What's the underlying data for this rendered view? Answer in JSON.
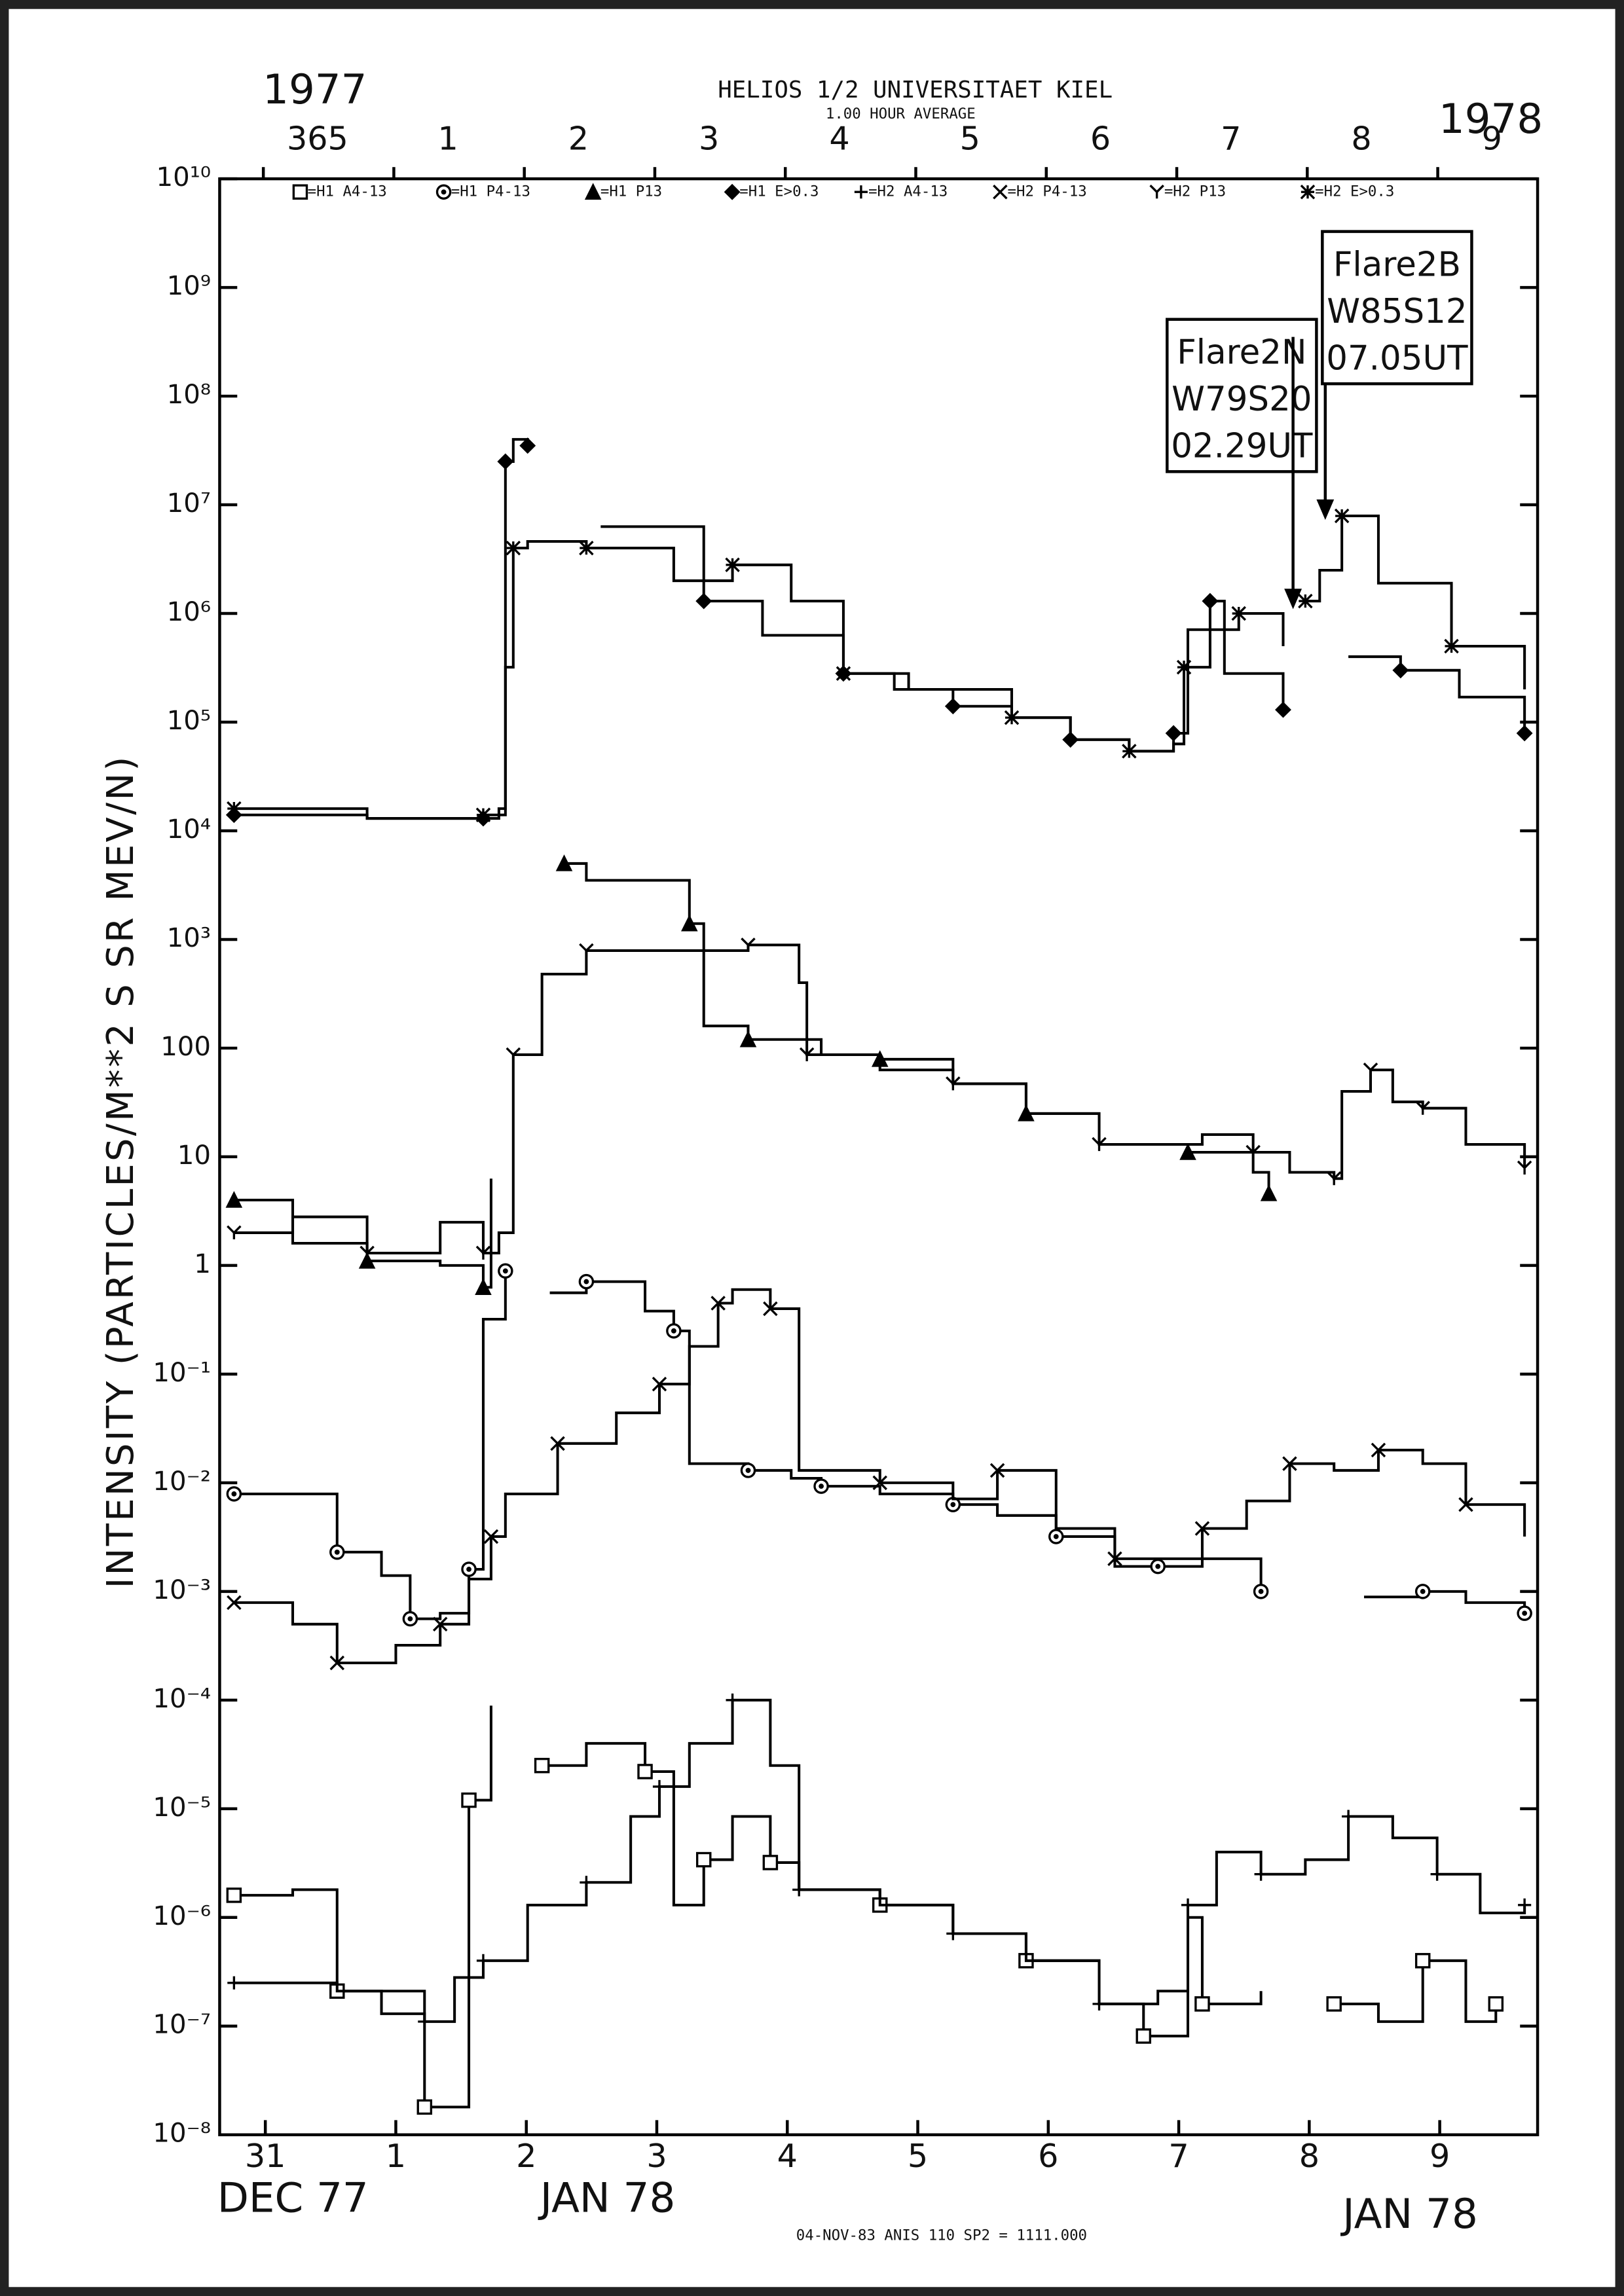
{
  "chart_data": {
    "type": "line",
    "title": "HELIOS 1/2  UNIVERSITAET KIEL",
    "subtitle": "1.00 HOUR AVERAGE",
    "year_left": "1977",
    "year_right": "1978",
    "y_label": "INTENSITY (PARTICLES/M**2 S SR MEV/N)",
    "x_labels": [
      "DEC 77",
      "JAN 78",
      "JAN 78"
    ],
    "footer": "04-NOV-83 ANIS 110 SP2 = 1111.000",
    "annotations": [
      {
        "lines": [
          "Flare2N",
          "W79S20",
          "02.29UT"
        ]
      },
      {
        "lines": [
          "Flare2B",
          "W85S12",
          "07.05UT"
        ]
      }
    ],
    "log_y": true,
    "step": true,
    "ylim": [
      1e-08,
      10000000000.0
    ],
    "yticks": [
      {
        "value": 10000000000.0,
        "label": "10¹⁰"
      },
      {
        "value": 1000000000.0,
        "label": "10⁹"
      },
      {
        "value": 100000000.0,
        "label": "10⁸"
      },
      {
        "value": 10000000.0,
        "label": "10⁷"
      },
      {
        "value": 1000000.0,
        "label": "10⁶"
      },
      {
        "value": 100000.0,
        "label": "10⁵"
      },
      {
        "value": 10000.0,
        "label": "10⁴"
      },
      {
        "value": 1000.0,
        "label": "10³"
      },
      100,
      10,
      1,
      {
        "value": 0.1,
        "label": "10⁻¹"
      },
      {
        "value": 0.01,
        "label": "10⁻²"
      },
      {
        "value": 0.001,
        "label": "10⁻³"
      },
      {
        "value": 0.0001,
        "label": "10⁻⁴"
      },
      {
        "value": 1e-05,
        "label": "10⁻⁵"
      },
      {
        "value": 1e-06,
        "label": "10⁻⁶"
      },
      {
        "value": 1e-07,
        "label": "10⁻⁷"
      },
      {
        "value": 1e-08,
        "label": "10⁻⁸"
      }
    ],
    "xlim": [
      -0.35,
      9.75
    ],
    "xticks": [
      {
        "value": 0,
        "label": "31"
      },
      1,
      2,
      3,
      4,
      5,
      6,
      7,
      8,
      9
    ],
    "x2ticks": [
      {
        "value": 0.4,
        "label": "365"
      },
      {
        "value": 1.4,
        "label": "1"
      },
      {
        "value": 2.4,
        "label": "2"
      },
      {
        "value": 3.4,
        "label": "3"
      },
      {
        "value": 4.4,
        "label": "4"
      },
      {
        "value": 5.4,
        "label": "5"
      },
      {
        "value": 6.4,
        "label": "6"
      },
      {
        "value": 7.4,
        "label": "7"
      },
      {
        "value": 8.4,
        "label": "8"
      },
      {
        "value": 9.4,
        "label": "9"
      }
    ],
    "series": [
      {
        "name": "=H1 A4-13",
        "marker": "square",
        "color": "#000",
        "x": [
          -0.24,
          0.21,
          0.55,
          0.89,
          1.22,
          1.34,
          1.56,
          1.73,
          1.9,
          2.12,
          2.46,
          2.91,
          3.13,
          3.36,
          3.58,
          3.87,
          4.09,
          4.71,
          5.27,
          5.83,
          6.39,
          6.73,
          7.07,
          7.18,
          7.63,
          7.91,
          8.19,
          8.53,
          8.87,
          9.2,
          9.43
        ],
        "values": [
          1.6e-06,
          1.8e-06,
          2.1e-07,
          1.3e-07,
          1.8e-08,
          1.8e-08,
          1.2e-05,
          8.9e-05,
          null,
          2.5e-05,
          4e-05,
          2.2e-05,
          1.3e-06,
          3.4e-06,
          8.5e-06,
          3.2e-06,
          1.8e-06,
          1.3e-06,
          7.1e-07,
          4e-07,
          1.6e-07,
          8.1e-08,
          1e-06,
          1.6e-07,
          2.1e-07,
          null,
          1.6e-07,
          1.1e-07,
          4e-07,
          1.1e-07,
          1.6e-07
        ]
      },
      {
        "name": "=H1 P4-13",
        "marker": "circle",
        "color": "#000",
        "x": [
          -0.24,
          0.33,
          0.55,
          0.89,
          1.11,
          1.34,
          1.56,
          1.67,
          1.84,
          2.01,
          2.18,
          2.46,
          2.91,
          3.13,
          3.25,
          3.7,
          4.03,
          4.26,
          4.71,
          5.27,
          5.61,
          6.06,
          6.51,
          6.84,
          7.18,
          7.63,
          8.02,
          8.42,
          8.87,
          9.2,
          9.65
        ],
        "values": [
          0.0079,
          0.0079,
          0.0023,
          0.0014,
          0.00056,
          0.00063,
          0.0016,
          0.32,
          0.89,
          null,
          0.56,
          0.71,
          0.38,
          0.25,
          0.015,
          0.013,
          0.011,
          0.0093,
          0.0079,
          0.0063,
          0.005,
          0.0032,
          0.0017,
          0.0017,
          0.002,
          0.001,
          null,
          0.00089,
          0.001,
          0.00079,
          0.00063
        ]
      },
      {
        "name": "=H1 P13",
        "marker": "triangle",
        "color": "#000",
        "x": [
          -0.24,
          0.21,
          0.78,
          1.34,
          1.67,
          1.73,
          2.01,
          2.29,
          2.46,
          3.25,
          3.36,
          3.7,
          4.26,
          4.71,
          5.27,
          5.83,
          6.39,
          7.07,
          7.57,
          7.69
        ],
        "values": [
          4,
          1.6,
          1.1,
          1,
          0.63,
          6.3,
          null,
          5000,
          3500,
          1400,
          160,
          120,
          87,
          79,
          47,
          25,
          13,
          11,
          7.2,
          4.6
        ]
      },
      {
        "name": "=H1 E>0.3",
        "marker": "diamond",
        "color": "#000",
        "x": [
          -0.24,
          0.78,
          1.67,
          1.79,
          1.84,
          1.9,
          2.01,
          2.29,
          2.57,
          3.36,
          3.81,
          4.43,
          4.82,
          5.27,
          5.72,
          6.17,
          6.62,
          6.96,
          7.07,
          7.24,
          7.35,
          7.8,
          8.06,
          8.3,
          8.7,
          9.15,
          9.65
        ],
        "values": [
          14000.0,
          13000.0,
          13000.0,
          16000.0,
          25000000.0,
          40000000.0,
          35000000.0,
          null,
          6300000.0,
          1300000.0,
          630000.0,
          280000.0,
          200000.0,
          140000.0,
          110000.0,
          69000.0,
          54000.0,
          79000.0,
          710000.0,
          1300000.0,
          280000.0,
          130000.0,
          null,
          400000.0,
          300000.0,
          170000.0,
          79000.0
        ]
      },
      {
        "name": "=H2 A4-13",
        "marker": "plus",
        "color": "#000",
        "x": [
          -0.24,
          0.55,
          1.22,
          1.45,
          1.67,
          2.01,
          2.46,
          2.8,
          3.02,
          3.25,
          3.58,
          3.87,
          4.09,
          4.71,
          5.27,
          5.83,
          6.39,
          6.84,
          7.07,
          7.29,
          7.63,
          7.97,
          8.3,
          8.64,
          8.98,
          9.31,
          9.65
        ],
        "values": [
          2.5e-07,
          2.1e-07,
          1.1e-07,
          2.8e-07,
          4e-07,
          1.3e-06,
          2.1e-06,
          8.5e-06,
          1.6e-05,
          4e-05,
          0.0001,
          2.5e-05,
          1.8e-06,
          1.3e-06,
          7.1e-07,
          4e-07,
          1.6e-07,
          2.1e-07,
          1.3e-06,
          4e-06,
          2.5e-06,
          3.4e-06,
          8.5e-06,
          5.4e-06,
          2.5e-06,
          1.1e-06,
          1.3e-06
        ]
      },
      {
        "name": "=H2 P4-13",
        "marker": "cross",
        "color": "#000",
        "x": [
          -0.24,
          0.21,
          0.55,
          1.0,
          1.34,
          1.56,
          1.73,
          1.84,
          2.24,
          2.69,
          3.02,
          3.25,
          3.47,
          3.58,
          3.87,
          4.09,
          4.71,
          5.27,
          5.61,
          6.06,
          6.51,
          6.84,
          7.18,
          7.52,
          7.85,
          8.19,
          8.53,
          8.87,
          9.2,
          9.65
        ],
        "values": [
          0.00079,
          0.0005,
          0.00022,
          0.00032,
          0.0005,
          0.0013,
          0.0032,
          0.0079,
          0.023,
          0.044,
          0.081,
          0.18,
          0.45,
          0.6,
          0.4,
          0.013,
          0.01,
          0.0071,
          0.013,
          0.0038,
          0.002,
          0.002,
          0.0038,
          0.0068,
          0.015,
          0.013,
          0.02,
          0.015,
          0.0063,
          0.0032
        ]
      },
      {
        "name": "=H2 P13",
        "marker": "y",
        "color": "#000",
        "x": [
          -0.24,
          0.21,
          0.78,
          1.34,
          1.67,
          1.79,
          1.9,
          2.12,
          2.46,
          3.02,
          3.7,
          4.09,
          4.15,
          4.71,
          5.27,
          5.83,
          6.39,
          7.18,
          7.57,
          7.85,
          8.19,
          8.25,
          8.47,
          8.64,
          8.87,
          9.2,
          9.65
        ],
        "values": [
          2,
          2.8,
          1.3,
          2.5,
          1.3,
          2,
          87,
          480,
          790,
          790,
          890,
          400,
          87,
          63,
          47,
          25,
          13,
          16,
          11,
          7.2,
          6.3,
          40,
          63,
          32,
          28,
          13,
          7.9
        ]
      },
      {
        "name": "=H2 E>0.3",
        "marker": "asterisk",
        "color": "#000",
        "x": [
          -0.24,
          0.78,
          1.67,
          1.84,
          1.9,
          2.01,
          2.46,
          3.13,
          3.58,
          4.03,
          4.43,
          4.93,
          5.72,
          6.17,
          6.62,
          6.96,
          7.04,
          7.24,
          7.46,
          7.8,
          7.88,
          7.97,
          8.08,
          8.25,
          8.53,
          9.09,
          9.65
        ],
        "values": [
          16000.0,
          13000.0,
          14000.0,
          320000.0,
          4000000.0,
          4600000.0,
          4000000.0,
          2000000.0,
          2800000.0,
          1300000.0,
          280000.0,
          200000.0,
          110000.0,
          69000.0,
          54000.0,
          63000.0,
          320000.0,
          710000.0,
          1000000.0,
          500000.0,
          null,
          1300000.0,
          2500000.0,
          7900000.0,
          1900000.0,
          500000.0,
          200000.0
        ]
      }
    ]
  }
}
